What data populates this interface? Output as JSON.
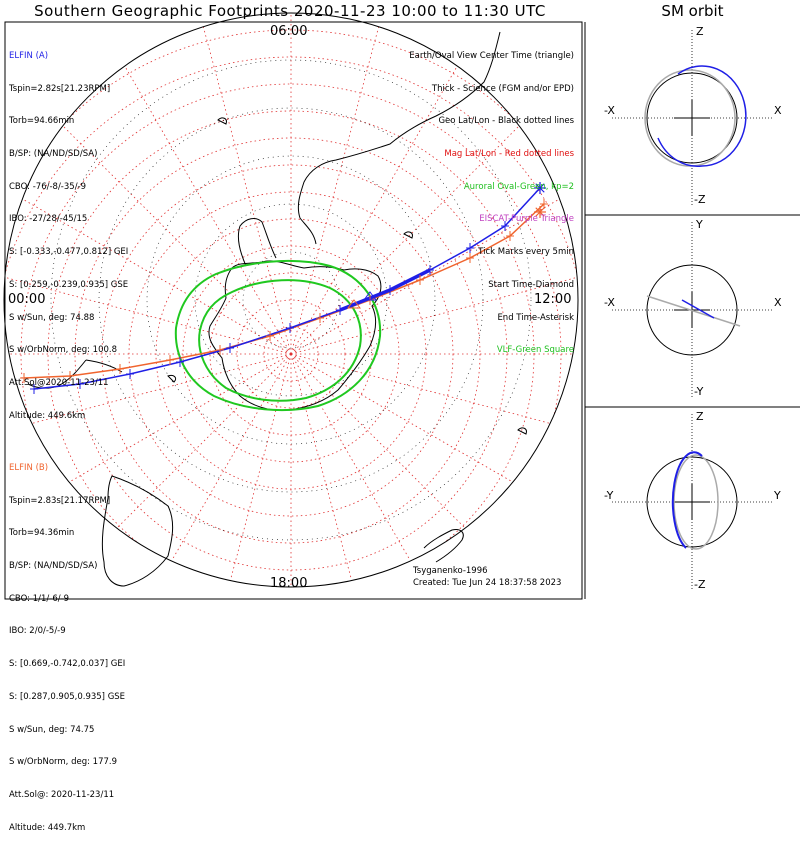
{
  "title": "Southern Geographic Footprints 2020-11-23 10:00 to 11:30 UTC",
  "sm_title": "SM orbit",
  "hour_labels": {
    "top": "06:00",
    "left": "00:00",
    "right": "12:00",
    "bottom": "18:00"
  },
  "elfin_a": {
    "header": "ELFIN (A)",
    "lines": [
      "Tspin=2.82s[21.23RPM]",
      "Torb=94.66min",
      "B/SP: (NA/ND/SD/SA)",
      "CBO: -76/-8/-35/-9",
      "IBO: -27/28/-45/15",
      "S: [-0.333,-0.477,0.812] GEI",
      "S: [0.259,-0.239,0.935] GSE",
      "S w/Sun, deg: 74.88",
      "S w/OrbNorm, deg: 100.8",
      "Att.Sol@2020-11-23/11",
      "Altitude: 449.6km"
    ],
    "color": "#1f1fe6"
  },
  "elfin_b": {
    "header": "ELFIN (B)",
    "lines": [
      "Tspin=2.83s[21.17RPM]",
      "Torb=94.36min",
      "B/SP: (NA/ND/SD/SA)",
      "CBO: 1/1/-6/-9",
      "IBO: 2/0/-5/-9",
      "S: [0.669,-0.742,0.037] GEI",
      "S: [0.287,0.905,0.935] GSE",
      "S w/Sun, deg: 74.75",
      "S w/OrbNorm, deg: 177.9",
      "Att.Sol@: 2020-11-23/11",
      "Altitude: 449.7km"
    ],
    "color": "#f0642e"
  },
  "legend": [
    {
      "text": "Earth/Oval View Center Time (triangle)",
      "color": "#000000"
    },
    {
      "text": "Thick - Science (FGM and/or EPD)",
      "color": "#000000"
    },
    {
      "text": "Geo Lat/Lon - Black dotted lines",
      "color": "#000000"
    },
    {
      "text": "Mag Lat/Lon - Red dotted lines",
      "color": "#e01010"
    },
    {
      "text": "Auroral Oval-Green, kp=2",
      "color": "#20c020"
    },
    {
      "text": "EISCAT-Purple Triangle",
      "color": "#c040c0"
    },
    {
      "text": "Tick Marks every 5min",
      "color": "#000000"
    },
    {
      "text": "Start Time-Diamond",
      "color": "#000000"
    },
    {
      "text": "End Time-Asterisk",
      "color": "#000000"
    },
    {
      "text": "VLF-Green Square",
      "color": "#20c020"
    }
  ],
  "footer": {
    "model": "Tsyganenko-1996",
    "created": "Created: Tue Jun 24 18:37:58 2023"
  },
  "sm_panels": [
    {
      "top": "Z",
      "bottom": "-Z",
      "left": "-X",
      "right": "X"
    },
    {
      "top": "Y",
      "bottom": "-Y",
      "left": "-X",
      "right": "X"
    },
    {
      "top": "Z",
      "bottom": "-Z",
      "left": "-Y",
      "right": "Y"
    }
  ],
  "colors": {
    "blue": "#1f1fe6",
    "orange": "#f0642e",
    "green": "#20c820",
    "grid_red": "#e03030"
  }
}
